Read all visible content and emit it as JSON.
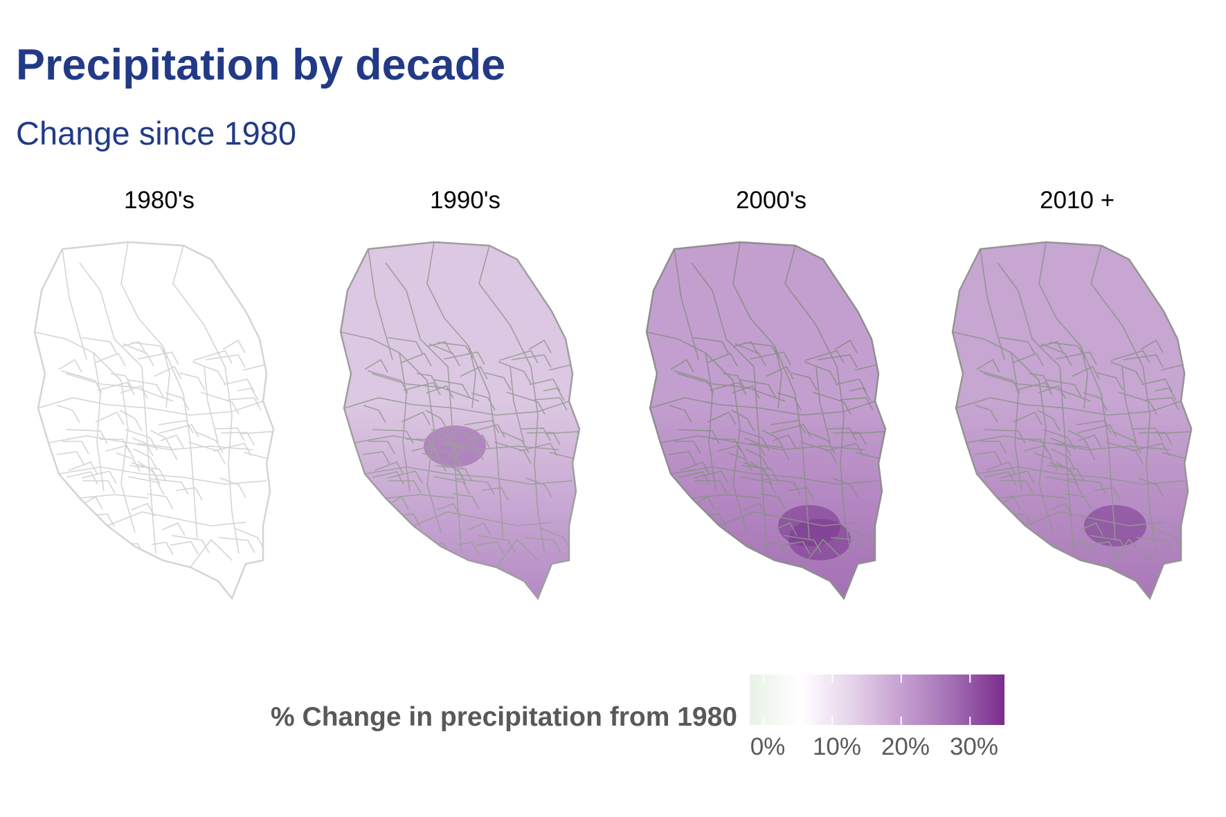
{
  "title": "Precipitation by decade",
  "subtitle": "Change since 1980",
  "panels": [
    {
      "label": "1980's",
      "fill_north": "#ffffff",
      "fill_south": "#ffffff",
      "stroke": "#d4d4d4",
      "hotspots": []
    },
    {
      "label": "1990's",
      "fill_north": "#dcc8e2",
      "fill_south": "#b58ac4",
      "stroke": "#9e9e9e",
      "hotspots": [
        "#9b63ab"
      ]
    },
    {
      "label": "2000's",
      "fill_north": "#c39fcf",
      "fill_south": "#a46fb4",
      "stroke": "#8e8e8e",
      "hotspots": [
        "#7c3a90",
        "#7c3a90"
      ]
    },
    {
      "label": "2010 +",
      "fill_north": "#c7a6d2",
      "fill_south": "#a877b7",
      "stroke": "#949494",
      "hotspots": [
        "#7f3f93"
      ]
    }
  ],
  "legend": {
    "title": "% Change in precipitation from 1980",
    "tick_labels": [
      "0%",
      "10%",
      "20%",
      "30%"
    ],
    "tick_values": [
      0,
      10,
      20,
      30
    ],
    "range": [
      -2,
      35
    ],
    "colors": [
      "#e8f2e6",
      "#ffffff",
      "#e6d3ea",
      "#c59fd0",
      "#a26db3",
      "#7a2c8d"
    ]
  }
}
